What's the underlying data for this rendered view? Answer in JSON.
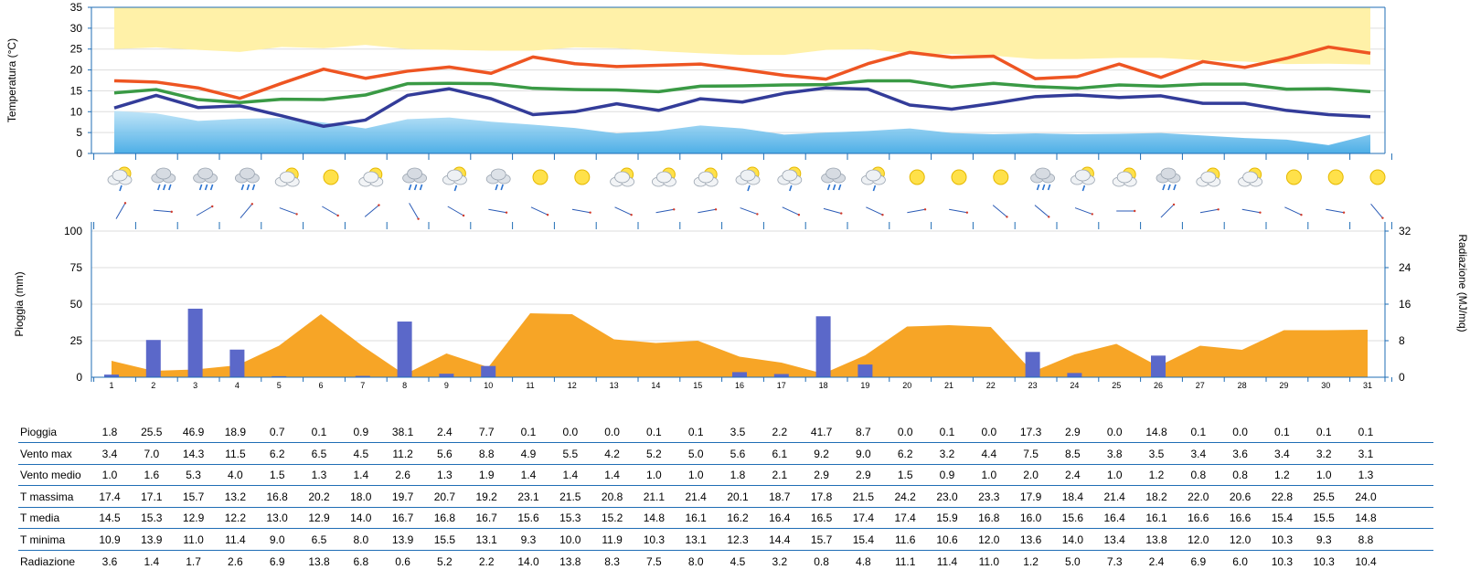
{
  "chart_data": [
    {
      "type": "line",
      "ylabel": "Temperatura (°C)",
      "ylim": [
        0,
        35
      ],
      "yticks": [
        0,
        5,
        10,
        15,
        20,
        25,
        30,
        35
      ],
      "x": [
        1,
        2,
        3,
        4,
        5,
        6,
        7,
        8,
        9,
        10,
        11,
        12,
        13,
        14,
        15,
        16,
        17,
        18,
        19,
        20,
        21,
        22,
        23,
        24,
        25,
        26,
        27,
        28,
        29,
        30,
        31
      ],
      "series": [
        {
          "key": "tmax",
          "color": "#ee5522",
          "values": [
            17.4,
            17.1,
            15.7,
            13.2,
            16.8,
            20.2,
            18.0,
            19.7,
            20.7,
            19.2,
            23.1,
            21.5,
            20.8,
            21.1,
            21.4,
            20.1,
            18.7,
            17.8,
            21.5,
            24.2,
            23.0,
            23.3,
            17.9,
            18.4,
            21.4,
            18.2,
            22.0,
            20.6,
            22.8,
            25.5,
            24.0
          ]
        },
        {
          "key": "tmed",
          "color": "#3a9a45",
          "values": [
            14.5,
            15.3,
            12.9,
            12.2,
            13.0,
            12.9,
            14.0,
            16.7,
            16.8,
            16.7,
            15.6,
            15.3,
            15.2,
            14.8,
            16.1,
            16.2,
            16.4,
            16.5,
            17.4,
            17.4,
            15.9,
            16.8,
            16.0,
            15.6,
            16.4,
            16.1,
            16.6,
            16.6,
            15.4,
            15.5,
            14.8
          ]
        },
        {
          "key": "tmin",
          "color": "#333c99",
          "values": [
            10.9,
            13.9,
            11.0,
            11.4,
            9.0,
            6.5,
            8.0,
            13.9,
            15.5,
            13.1,
            9.3,
            10.0,
            11.9,
            10.3,
            13.1,
            12.3,
            14.4,
            15.7,
            15.4,
            11.6,
            10.6,
            12.0,
            13.6,
            14.0,
            13.4,
            13.8,
            12.0,
            12.0,
            10.3,
            9.3,
            8.8
          ]
        }
      ],
      "band_upper": {
        "color": "#fff1a8",
        "lower": [
          25.0,
          25.4,
          24.8,
          24.3,
          25.5,
          25.2,
          26.0,
          25.0,
          24.8,
          24.6,
          24.6,
          25.4,
          25.2,
          24.5,
          24.0,
          23.6,
          23.6,
          24.8,
          25.0,
          23.9,
          23.8,
          23.4,
          22.6,
          22.6,
          22.9,
          22.9,
          22.3,
          22.0,
          21.4,
          21.5,
          21.3
        ]
      },
      "band_lower": {
        "color": "#5bbcec",
        "upper": [
          10.2,
          9.6,
          7.8,
          8.3,
          8.5,
          7.4,
          6.0,
          8.2,
          8.6,
          7.6,
          6.9,
          6.1,
          4.8,
          5.4,
          6.7,
          6.0,
          4.5,
          5.0,
          5.4,
          6.0,
          4.9,
          4.6,
          4.8,
          4.6,
          4.7,
          4.9,
          4.3,
          3.7,
          3.3,
          2.0,
          4.5
        ]
      }
    },
    {
      "type": "bar",
      "ylabel": "Pioggia (mm)",
      "y2label": "Radiazione (MJ/mq)",
      "ylim": [
        0,
        100
      ],
      "yticks": [
        0,
        25,
        50,
        75,
        100
      ],
      "y2lim": [
        0,
        32
      ],
      "y2ticks": [
        0,
        8,
        16,
        24,
        32
      ],
      "categories": [
        "1",
        "2",
        "3",
        "4",
        "5",
        "6",
        "7",
        "8",
        "9",
        "10",
        "11",
        "12",
        "13",
        "14",
        "15",
        "16",
        "17",
        "18",
        "19",
        "20",
        "21",
        "22",
        "23",
        "24",
        "25",
        "26",
        "27",
        "28",
        "29",
        "30",
        "31"
      ],
      "series": [
        {
          "key": "pioggia",
          "type": "bar",
          "color": "#5b68c9",
          "axis": "left",
          "values": [
            1.8,
            25.5,
            46.9,
            18.9,
            0.7,
            0.1,
            0.9,
            38.1,
            2.4,
            7.7,
            0.1,
            0.0,
            0.0,
            0.1,
            0.1,
            3.5,
            2.2,
            41.7,
            8.7,
            0.0,
            0.1,
            0.0,
            17.3,
            2.9,
            0.0,
            14.8,
            0.1,
            0.0,
            0.1,
            0.1,
            0.1
          ]
        },
        {
          "key": "radiazione",
          "type": "area",
          "color": "#f7a526",
          "axis": "right",
          "values": [
            3.6,
            1.4,
            1.7,
            2.6,
            6.9,
            13.8,
            6.8,
            0.6,
            5.2,
            2.2,
            14.0,
            13.8,
            8.3,
            7.5,
            8.0,
            4.5,
            3.2,
            0.8,
            4.8,
            11.1,
            11.4,
            11.0,
            1.2,
            5.0,
            7.3,
            2.4,
            6.9,
            6.0,
            10.3,
            10.3,
            10.4
          ]
        }
      ]
    }
  ],
  "weather_icons": [
    "partly-cloudy-light-rain-icon",
    "cloudy-rain-icon",
    "cloudy-rain-icon",
    "cloudy-rain-icon",
    "partly-cloudy-icon",
    "sun-icon",
    "partly-cloudy-icon",
    "cloudy-rain-icon",
    "partly-cloudy-light-rain-icon",
    "cloudy-light-rain-icon",
    "sun-icon",
    "sun-icon",
    "partly-cloudy-icon",
    "partly-cloudy-icon",
    "partly-cloudy-icon",
    "partly-cloudy-light-rain-icon",
    "partly-cloudy-light-rain-icon",
    "cloudy-rain-icon",
    "partly-cloudy-light-rain-icon",
    "sun-icon",
    "sun-icon",
    "sun-icon",
    "cloudy-rain-icon",
    "partly-cloudy-light-rain-icon",
    "partly-cloudy-icon",
    "cloudy-rain-icon",
    "partly-cloudy-icon",
    "partly-cloudy-icon",
    "sun-icon",
    "sun-icon",
    "sun-icon"
  ],
  "wind_dir_deg": [
    30,
    95,
    60,
    40,
    110,
    120,
    50,
    150,
    120,
    100,
    115,
    100,
    115,
    80,
    80,
    110,
    115,
    105,
    115,
    80,
    100,
    130,
    130,
    110,
    90,
    45,
    80,
    100,
    115,
    100,
    140
  ],
  "table": {
    "rows": [
      {
        "label": "Pioggia",
        "values": [
          "1.8",
          "25.5",
          "46.9",
          "18.9",
          "0.7",
          "0.1",
          "0.9",
          "38.1",
          "2.4",
          "7.7",
          "0.1",
          "0.0",
          "0.0",
          "0.1",
          "0.1",
          "3.5",
          "2.2",
          "41.7",
          "8.7",
          "0.0",
          "0.1",
          "0.0",
          "17.3",
          "2.9",
          "0.0",
          "14.8",
          "0.1",
          "0.0",
          "0.1",
          "0.1",
          "0.1"
        ]
      },
      {
        "label": "Vento max",
        "values": [
          "3.4",
          "7.0",
          "14.3",
          "11.5",
          "6.2",
          "6.5",
          "4.5",
          "11.2",
          "5.6",
          "8.8",
          "4.9",
          "5.5",
          "4.2",
          "5.2",
          "5.0",
          "5.6",
          "6.1",
          "9.2",
          "9.0",
          "6.2",
          "3.2",
          "4.4",
          "7.5",
          "8.5",
          "3.8",
          "3.5",
          "3.4",
          "3.6",
          "3.4",
          "3.2",
          "3.1"
        ]
      },
      {
        "label": "Vento medio",
        "values": [
          "1.0",
          "1.6",
          "5.3",
          "4.0",
          "1.5",
          "1.3",
          "1.4",
          "2.6",
          "1.3",
          "1.9",
          "1.4",
          "1.4",
          "1.4",
          "1.0",
          "1.0",
          "1.8",
          "2.1",
          "2.9",
          "2.9",
          "1.5",
          "0.9",
          "1.0",
          "2.0",
          "2.4",
          "1.0",
          "1.2",
          "0.8",
          "0.8",
          "1.2",
          "1.0",
          "1.3"
        ]
      },
      {
        "label": "T massima",
        "values": [
          "17.4",
          "17.1",
          "15.7",
          "13.2",
          "16.8",
          "20.2",
          "18.0",
          "19.7",
          "20.7",
          "19.2",
          "23.1",
          "21.5",
          "20.8",
          "21.1",
          "21.4",
          "20.1",
          "18.7",
          "17.8",
          "21.5",
          "24.2",
          "23.0",
          "23.3",
          "17.9",
          "18.4",
          "21.4",
          "18.2",
          "22.0",
          "20.6",
          "22.8",
          "25.5",
          "24.0"
        ]
      },
      {
        "label": "T media",
        "values": [
          "14.5",
          "15.3",
          "12.9",
          "12.2",
          "13.0",
          "12.9",
          "14.0",
          "16.7",
          "16.8",
          "16.7",
          "15.6",
          "15.3",
          "15.2",
          "14.8",
          "16.1",
          "16.2",
          "16.4",
          "16.5",
          "17.4",
          "17.4",
          "15.9",
          "16.8",
          "16.0",
          "15.6",
          "16.4",
          "16.1",
          "16.6",
          "16.6",
          "15.4",
          "15.5",
          "14.8"
        ]
      },
      {
        "label": "T minima",
        "values": [
          "10.9",
          "13.9",
          "11.0",
          "11.4",
          "9.0",
          "6.5",
          "8.0",
          "13.9",
          "15.5",
          "13.1",
          "9.3",
          "10.0",
          "11.9",
          "10.3",
          "13.1",
          "12.3",
          "14.4",
          "15.7",
          "15.4",
          "11.6",
          "10.6",
          "12.0",
          "13.6",
          "14.0",
          "13.4",
          "13.8",
          "12.0",
          "12.0",
          "10.3",
          "9.3",
          "8.8"
        ]
      },
      {
        "label": "Radiazione",
        "values": [
          "3.6",
          "1.4",
          "1.7",
          "2.6",
          "6.9",
          "13.8",
          "6.8",
          "0.6",
          "5.2",
          "2.2",
          "14.0",
          "13.8",
          "8.3",
          "7.5",
          "8.0",
          "4.5",
          "3.2",
          "0.8",
          "4.8",
          "11.1",
          "11.4",
          "11.0",
          "1.2",
          "5.0",
          "7.3",
          "2.4",
          "6.9",
          "6.0",
          "10.3",
          "10.3",
          "10.4"
        ]
      }
    ]
  }
}
